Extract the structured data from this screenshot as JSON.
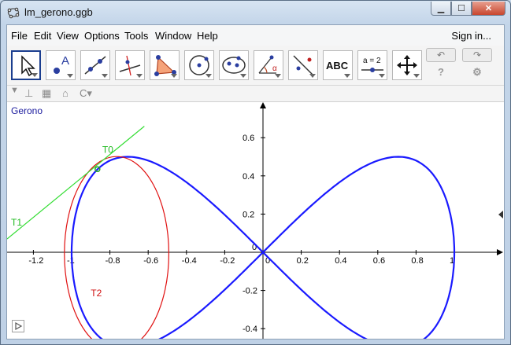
{
  "window": {
    "title": "lm_gerono.ggb"
  },
  "menu": {
    "items": [
      "File",
      "Edit",
      "View",
      "Options",
      "Tools",
      "Window",
      "Help"
    ],
    "sign_in": "Sign in..."
  },
  "toolbar": {
    "tools": [
      {
        "icon": "move-arrow-icon"
      },
      {
        "icon": "point-icon",
        "letter": "A"
      },
      {
        "icon": "line-icon"
      },
      {
        "icon": "perpendicular-line-icon"
      },
      {
        "icon": "polygon-icon"
      },
      {
        "icon": "circle-icon"
      },
      {
        "icon": "ellipse-icon"
      },
      {
        "icon": "angle-icon",
        "letter": "α"
      },
      {
        "icon": "reflect-icon"
      },
      {
        "icon": "text-icon",
        "label": "ABC"
      },
      {
        "icon": "slider-icon",
        "label": "a = 2"
      },
      {
        "icon": "move-view-icon"
      }
    ],
    "undo": "↶",
    "redo": "↷",
    "help": "?",
    "settings": "⚙"
  },
  "graphics": {
    "view_label": "Gerono",
    "x_ticks": [
      "-1.2",
      "-1",
      "-0.8",
      "-0.6",
      "-0.4",
      "-0.2",
      "0",
      "0.2",
      "0.4",
      "0.6",
      "0.8",
      "1"
    ],
    "y_ticks": [
      "0.6",
      "0.4",
      "0.2",
      "-0.2",
      "-0.4"
    ],
    "labels": {
      "t0": "T0",
      "t1": "T1",
      "t2": "T2"
    },
    "colors": {
      "curve": "#1a1aff",
      "tangent": "#33dd33",
      "ellipse": "#e01010",
      "axis": "#000000"
    }
  }
}
